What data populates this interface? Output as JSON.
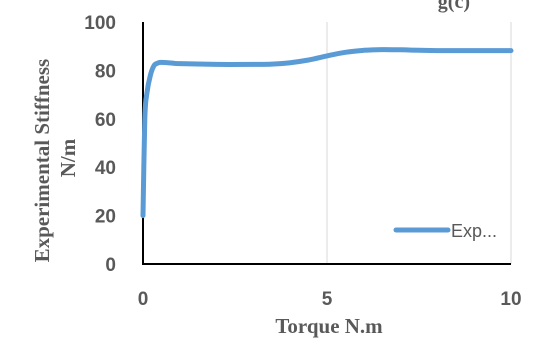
{
  "top_caption": "g(c)",
  "chart_data": {
    "type": "line",
    "title": "",
    "xlabel": "Torque N.m",
    "ylabel_lines": [
      "Experimental Stiffness",
      "N/m"
    ],
    "xlim": [
      0,
      10
    ],
    "ylim": [
      0,
      100
    ],
    "x_ticks": [
      "0",
      "5",
      "10"
    ],
    "y_ticks": [
      "0",
      "20",
      "40",
      "60",
      "80",
      "100"
    ],
    "grid": "vertical",
    "legend_position": "bottom-right",
    "colors": {
      "series": "#5B9BD5",
      "grid": "#D9D9D9",
      "axis": "#000000"
    },
    "series": [
      {
        "name": "Exp...",
        "x": [
          0,
          0.05,
          0.1,
          0.2,
          0.3,
          0.4,
          0.5,
          0.8,
          1,
          2,
          3,
          3.5,
          4,
          4.5,
          5,
          5.5,
          6,
          6.5,
          7,
          7.5,
          8,
          9,
          10
        ],
        "y": [
          20,
          60,
          70,
          78,
          82,
          83,
          83.3,
          83,
          82.8,
          82.5,
          82.5,
          82.6,
          83.2,
          84.3,
          86,
          87.5,
          88.3,
          88.6,
          88.5,
          88.3,
          88.2,
          88.2,
          88.2
        ]
      }
    ]
  }
}
